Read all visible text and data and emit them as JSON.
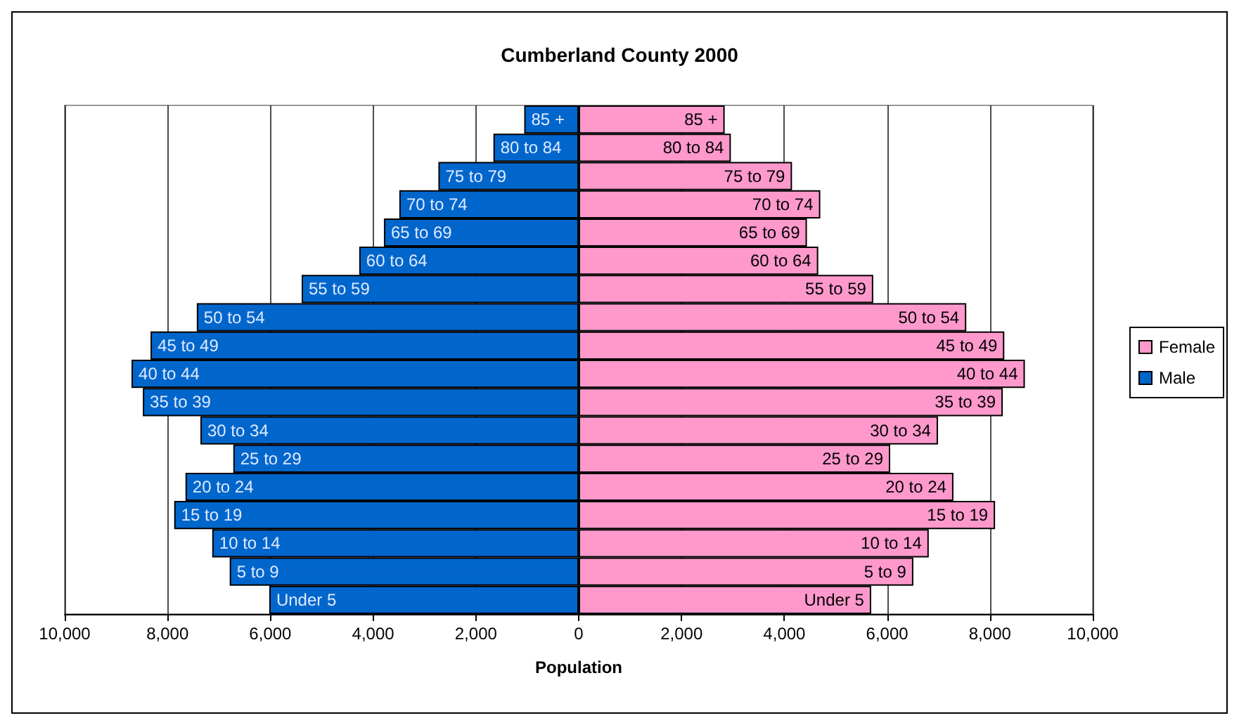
{
  "chart_data": {
    "type": "bar",
    "orientation": "horizontal",
    "title": "Cumberland County 2000",
    "xlabel": "Population",
    "categories": [
      "85 +",
      "80 to 84",
      "75 to 79",
      "70 to 74",
      "65 to 69",
      "60 to 64",
      "55 to 59",
      "50 to 54",
      "45 to 49",
      "40 to 44",
      "35 to 39",
      "30 to 34",
      "25 to 29",
      "20 to 24",
      "15 to 19",
      "10 to 14",
      "5 to 9",
      "Under 5"
    ],
    "series": [
      {
        "name": "Female",
        "color": "#ff99cc",
        "values": [
          2840,
          2960,
          4150,
          4700,
          4440,
          4660,
          5730,
          7540,
          8280,
          8680,
          8250,
          6990,
          6060,
          7290,
          8100,
          6810,
          6510,
          5690
        ]
      },
      {
        "name": "Male",
        "color": "#0066cc",
        "values": [
          -1060,
          -1660,
          -2730,
          -3490,
          -3790,
          -4270,
          -5390,
          -7430,
          -8330,
          -8700,
          -8480,
          -7360,
          -6720,
          -7650,
          -7870,
          -7130,
          -6790,
          -6020
        ]
      }
    ],
    "xlim": [
      -10000,
      10000
    ],
    "xticks": [
      {
        "value": -10000,
        "label": "10,000"
      },
      {
        "value": -8000,
        "label": "8,000"
      },
      {
        "value": -6000,
        "label": "6,000"
      },
      {
        "value": -4000,
        "label": "4,000"
      },
      {
        "value": -2000,
        "label": "2,000"
      },
      0,
      {
        "value": 2000,
        "label": "2,000"
      },
      {
        "value": 4000,
        "label": "4,000"
      },
      {
        "value": 6000,
        "label": "6,000"
      },
      {
        "value": 8000,
        "label": "8,000"
      },
      {
        "value": 10000,
        "label": "10,000"
      }
    ],
    "stacked": true,
    "grid": "x",
    "legend": "right",
    "tick_labels": "x"
  }
}
